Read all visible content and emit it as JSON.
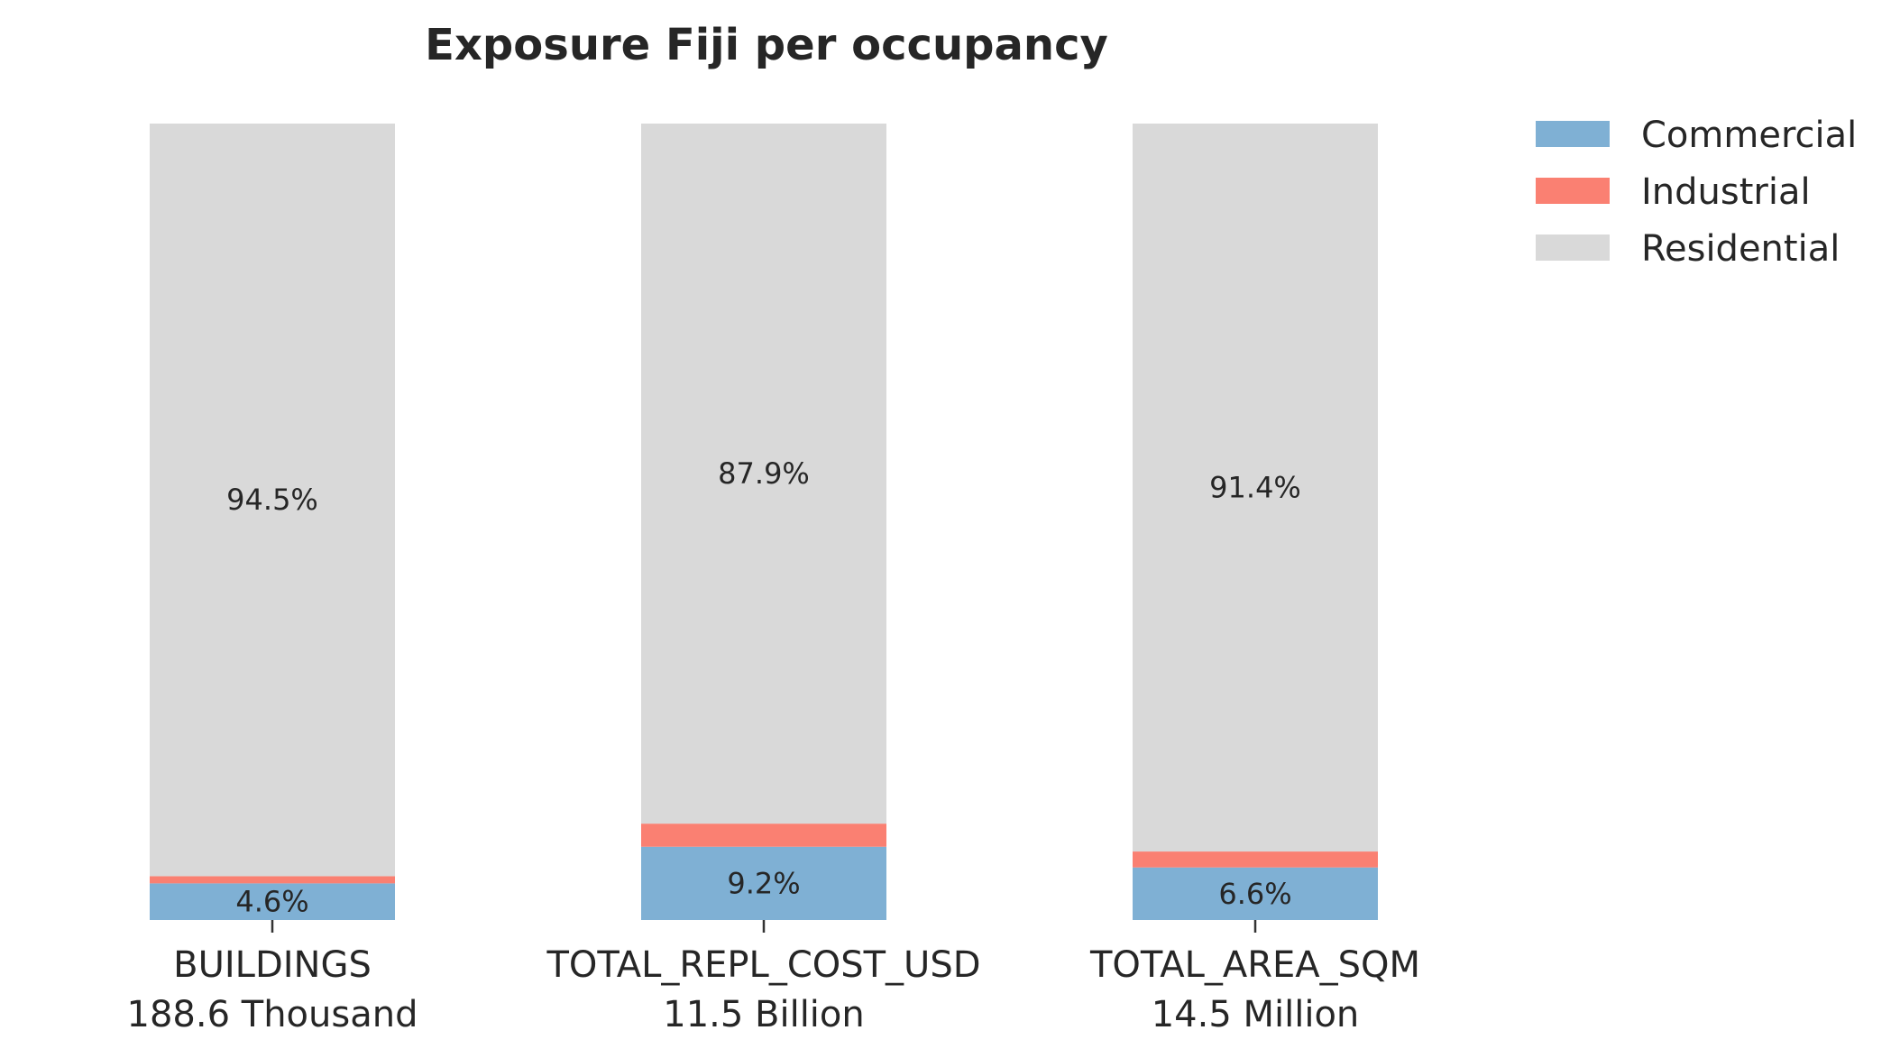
{
  "chart_data": {
    "type": "bar",
    "stacked": true,
    "title": "Exposure Fiji per occupancy",
    "xlabel": "",
    "ylabel": "",
    "ylim": [
      0,
      100
    ],
    "grid": false,
    "legend_position": "top-right, outside plot",
    "categories": [
      "BUILDINGS",
      "TOTAL_REPL_COST_USD",
      "TOTAL_AREA_SQM"
    ],
    "category_totals": [
      "188.6 Thousand",
      "11.5 Billion",
      "14.5 Million"
    ],
    "series": [
      {
        "name": "Commercial",
        "color": "#7fb0d4",
        "values": [
          4.6,
          9.2,
          6.6
        ],
        "labels": [
          "4.6%",
          "9.2%",
          "6.6%"
        ]
      },
      {
        "name": "Industrial",
        "color": "#fa8072",
        "values": [
          0.9,
          2.9,
          2.0
        ],
        "labels": [
          "",
          "",
          ""
        ]
      },
      {
        "name": "Residential",
        "color": "#d9d9d9",
        "values": [
          94.5,
          87.9,
          91.4
        ],
        "labels": [
          "94.5%",
          "87.9%",
          "91.4%"
        ]
      }
    ]
  }
}
